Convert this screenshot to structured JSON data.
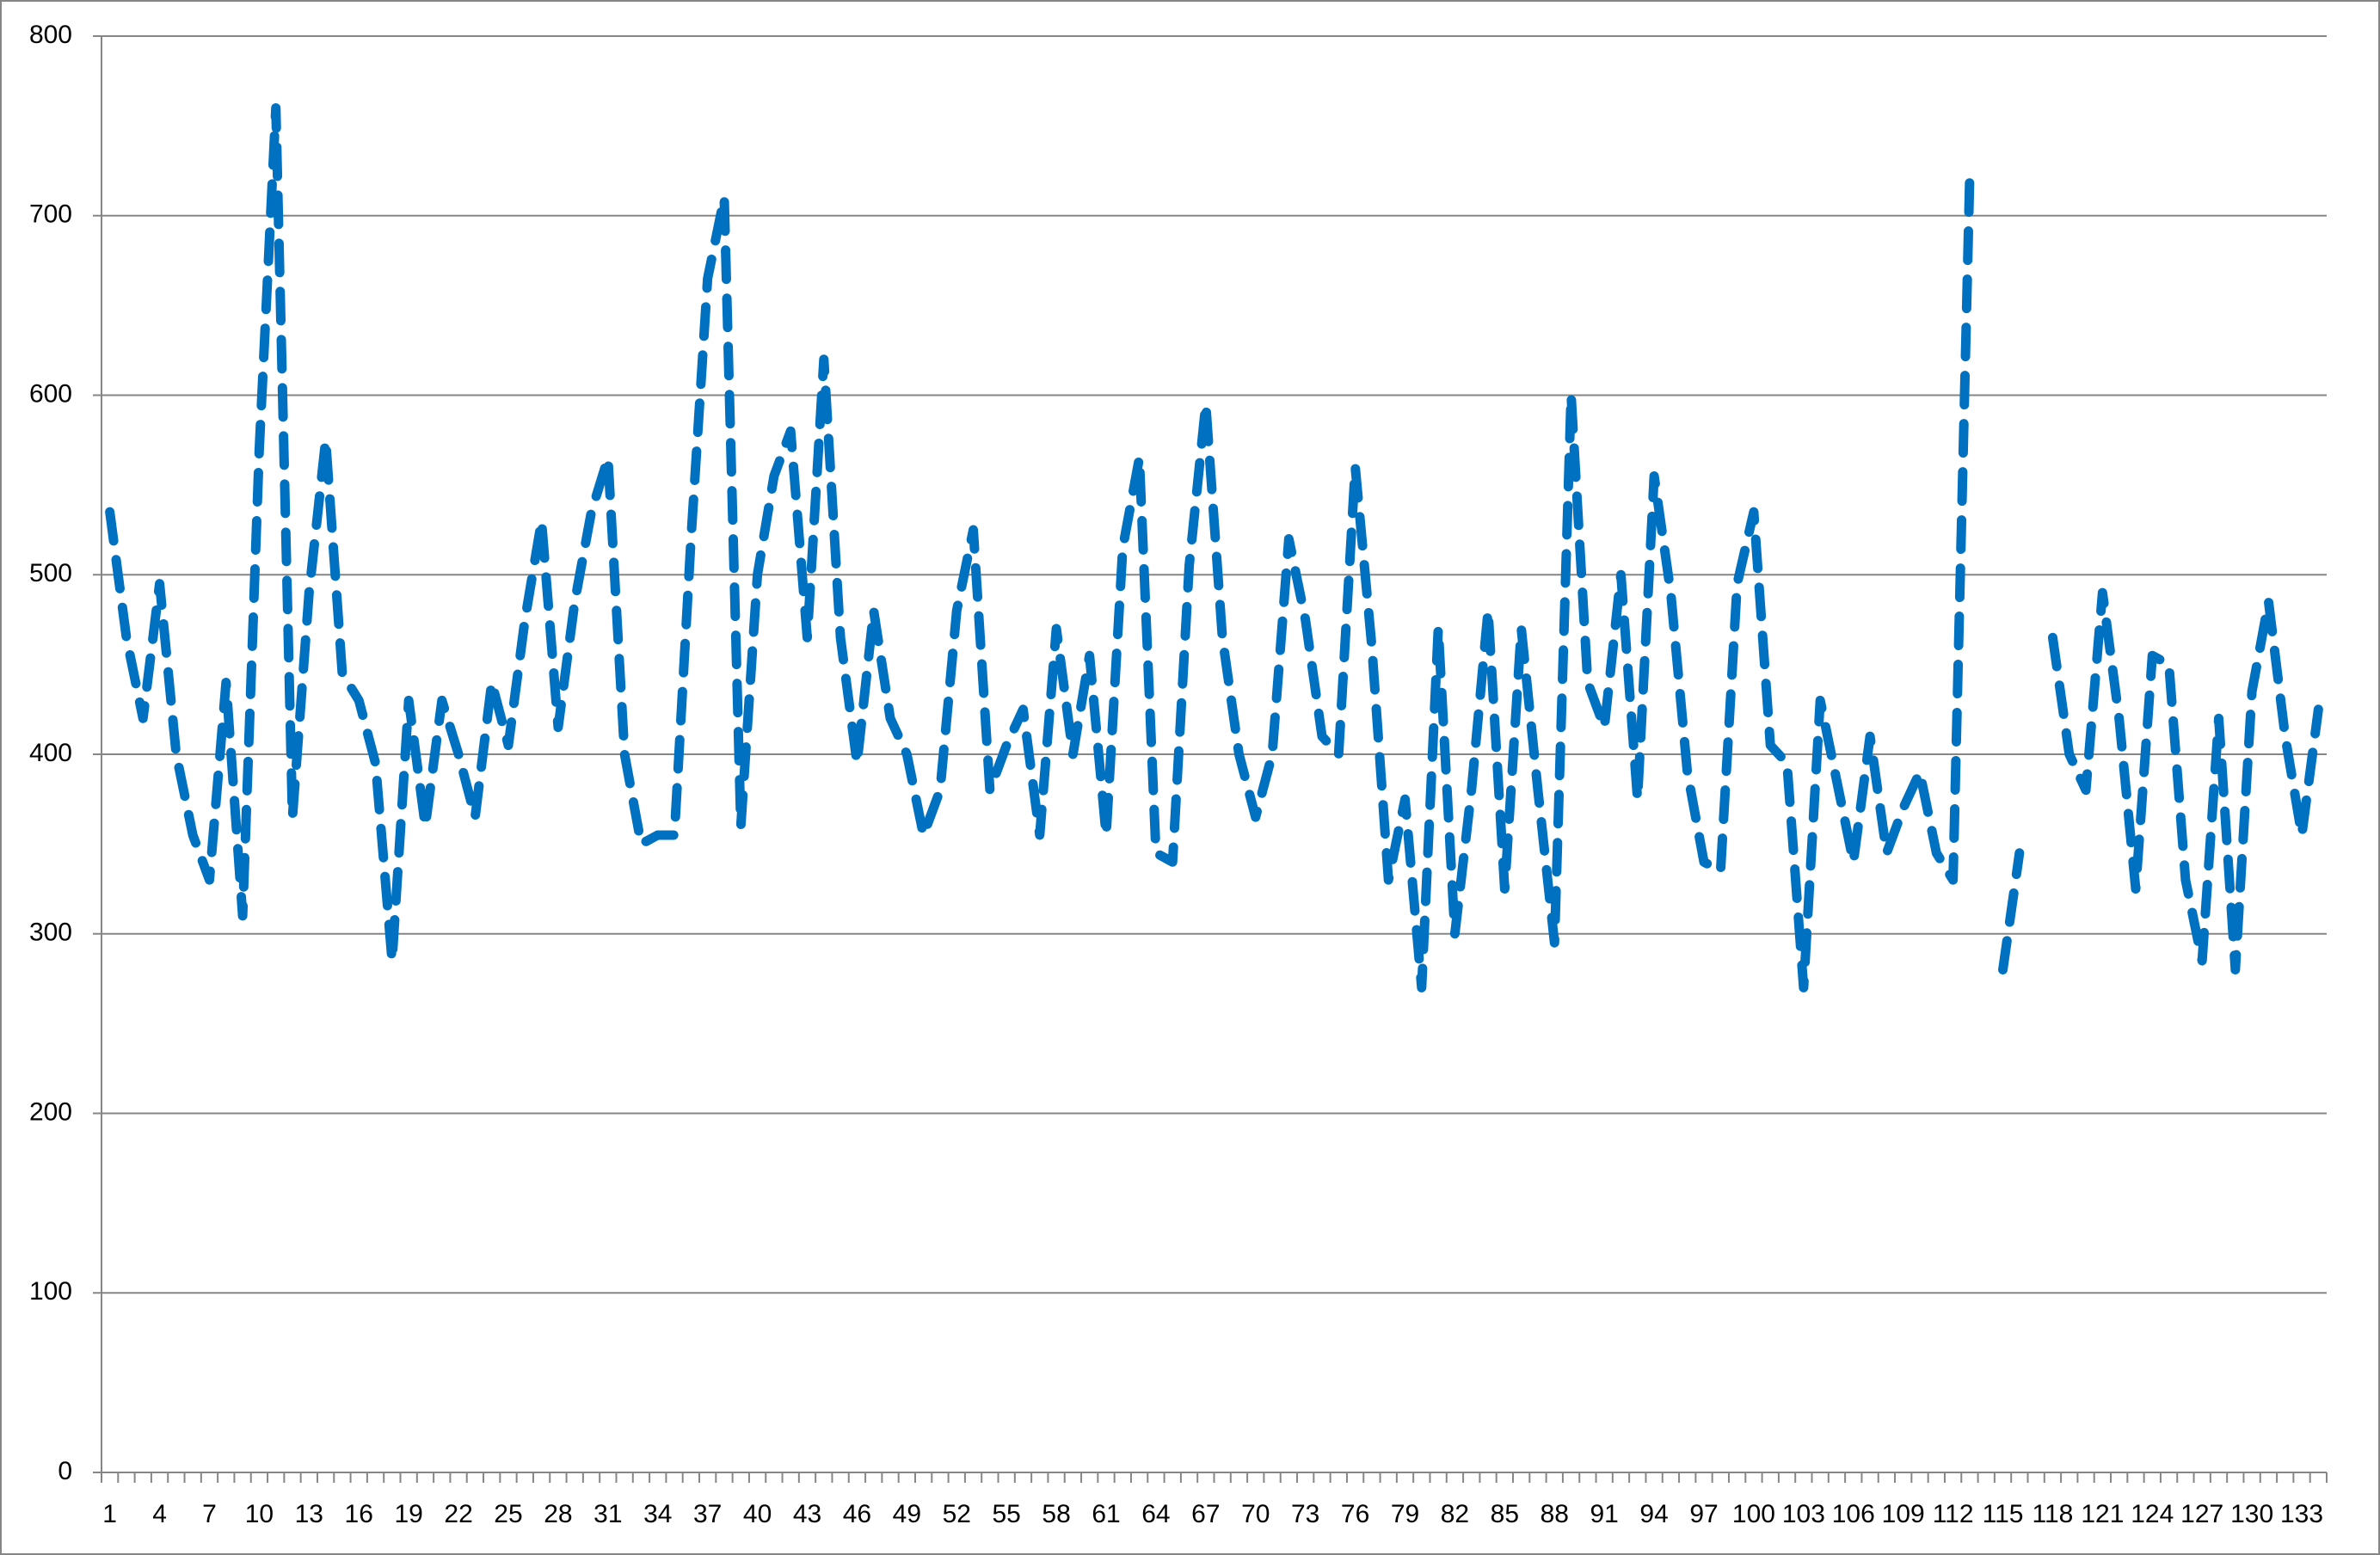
{
  "chart_data": {
    "type": "line",
    "categories": [
      1,
      null,
      null,
      4,
      null,
      null,
      7,
      null,
      null,
      10,
      null,
      null,
      13,
      null,
      null,
      16,
      null,
      null,
      19,
      null,
      null,
      22,
      null,
      null,
      25,
      null,
      null,
      28,
      null,
      null,
      31,
      null,
      null,
      34,
      null,
      null,
      37,
      null,
      null,
      40,
      null,
      null,
      43,
      null,
      null,
      46,
      null,
      null,
      49,
      null,
      null,
      52,
      null,
      null,
      55,
      null,
      null,
      58,
      null,
      null,
      61,
      null,
      null,
      64,
      null,
      null,
      67,
      null,
      null,
      70,
      null,
      null,
      73,
      null,
      null,
      76,
      null,
      null,
      79,
      null,
      null,
      82,
      null,
      null,
      85,
      null,
      null,
      88,
      null,
      null,
      91,
      null,
      null,
      94,
      null,
      null,
      97,
      null,
      null,
      100,
      null,
      null,
      103,
      null,
      null,
      106,
      null,
      null,
      109,
      null,
      null,
      112,
      null,
      null,
      115,
      null,
      null,
      118,
      null,
      null,
      121,
      null,
      null,
      124,
      null,
      null,
      127,
      null,
      null,
      130,
      null,
      null,
      133,
      null
    ],
    "values": [
      535,
      465,
      420,
      495,
      400,
      355,
      330,
      440,
      310,
      570,
      760,
      365,
      490,
      575,
      445,
      430,
      395,
      285,
      430,
      360,
      430,
      400,
      365,
      440,
      405,
      475,
      530,
      415,
      485,
      535,
      565,
      400,
      350,
      355,
      355,
      520,
      665,
      710,
      360,
      500,
      555,
      580,
      465,
      620,
      465,
      395,
      480,
      420,
      400,
      355,
      380,
      480,
      525,
      380,
      405,
      425,
      355,
      470,
      400,
      455,
      355,
      515,
      565,
      345,
      340,
      505,
      595,
      465,
      400,
      365,
      400,
      520,
      475,
      410,
      400,
      560,
      460,
      330,
      375,
      270,
      470,
      300,
      380,
      480,
      325,
      470,
      380,
      295,
      600,
      440,
      415,
      500,
      375,
      555,
      490,
      390,
      340,
      335,
      495,
      535,
      405,
      395,
      270,
      430,
      385,
      340,
      410,
      345,
      370,
      390,
      345,
      330,
      720,
      null,
      280,
      345,
      null,
      465,
      400,
      380,
      490,
      420,
      325,
      455,
      450,
      330,
      285,
      420,
      280,
      435,
      485,
      410,
      355,
      425
    ],
    "color": "#0070c0",
    "line_style": "dashed",
    "ylim": [
      0,
      800
    ],
    "yticks": [
      0,
      100,
      200,
      300,
      400,
      500,
      600,
      700,
      800
    ],
    "grid": true
  }
}
